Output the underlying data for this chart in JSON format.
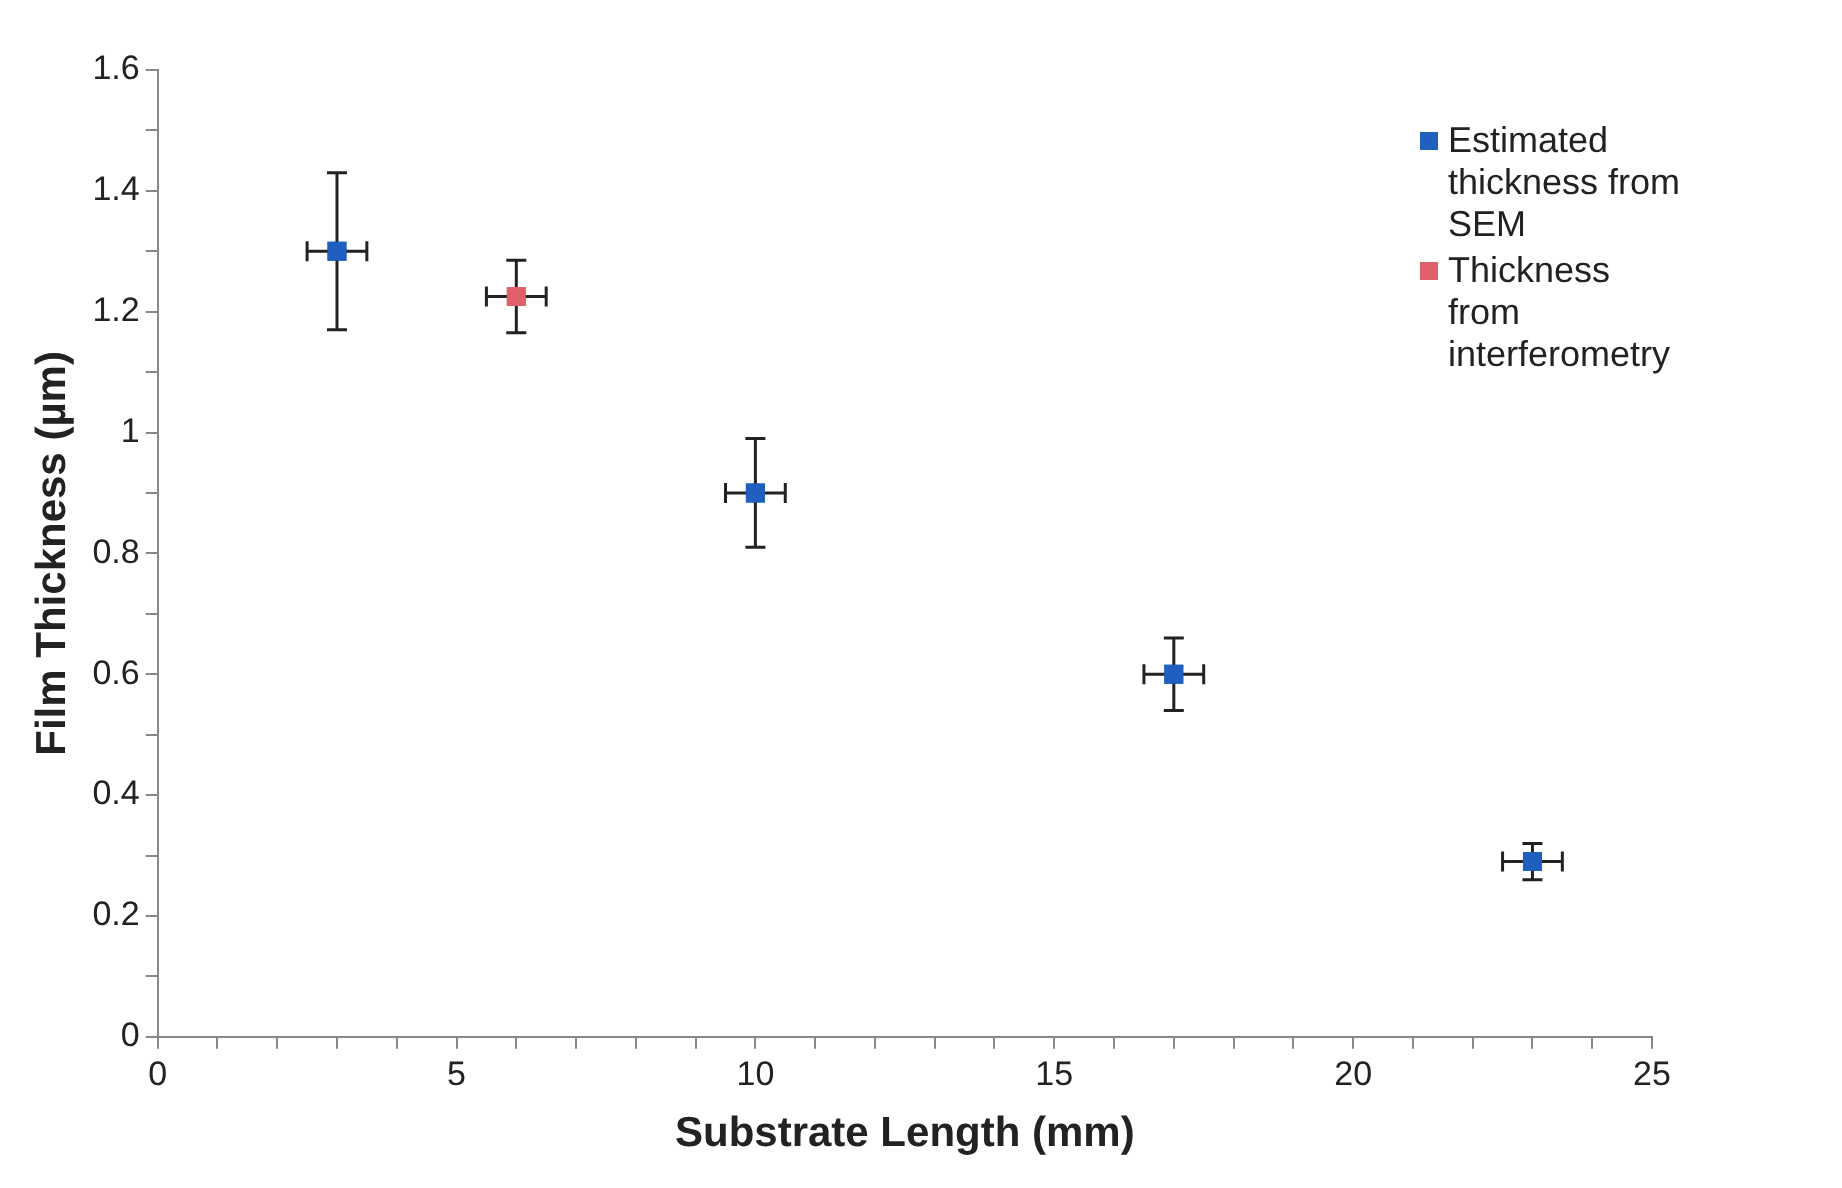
{
  "chart_data": {
    "type": "scatter",
    "xlabel": "Substrate Length (mm)",
    "ylabel": "Film Thickness (µm)",
    "series": [
      {
        "name": "Estimated thickness from SEM",
        "color": "#1f5fbf",
        "x": [
          3,
          10,
          17,
          23
        ],
        "values": [
          1.3,
          0.9,
          0.6,
          0.29
        ],
        "errors": [
          0.13,
          0.09,
          0.06,
          0.03
        ],
        "xerrors": [
          0.5,
          0.5,
          0.5,
          0.5
        ]
      },
      {
        "name": "Thickness from interferometry",
        "color": "#e0606a",
        "x": [
          6
        ],
        "values": [
          1.225
        ],
        "errors": [
          0.06
        ],
        "xerrors": [
          0.5
        ]
      }
    ],
    "xlim": [
      0,
      25
    ],
    "xticks": [
      0,
      {
        "value": 1,
        "label": null
      },
      {
        "value": 2,
        "label": null
      },
      {
        "value": 3,
        "label": null
      },
      {
        "value": 4,
        "label": null
      },
      5,
      {
        "value": 6,
        "label": null
      },
      {
        "value": 7,
        "label": null
      },
      {
        "value": 8,
        "label": null
      },
      {
        "value": 9,
        "label": null
      },
      10,
      {
        "value": 11,
        "label": null
      },
      {
        "value": 12,
        "label": null
      },
      {
        "value": 13,
        "label": null
      },
      {
        "value": 14,
        "label": null
      },
      15,
      {
        "value": 16,
        "label": null
      },
      {
        "value": 17,
        "label": null
      },
      {
        "value": 18,
        "label": null
      },
      {
        "value": 19,
        "label": null
      },
      20,
      {
        "value": 21,
        "label": null
      },
      {
        "value": 22,
        "label": null
      },
      {
        "value": 23,
        "label": null
      },
      {
        "value": 24,
        "label": null
      },
      25
    ],
    "ylim": [
      0,
      1.6
    ],
    "yticks": [
      0,
      {
        "value": 0.1,
        "label": null
      },
      0.2,
      {
        "value": 0.3,
        "label": null
      },
      0.4,
      {
        "value": 0.5,
        "label": null
      },
      0.6,
      {
        "value": 0.7,
        "label": null
      },
      0.8,
      {
        "value": 0.9,
        "label": null
      },
      1,
      {
        "value": 1.1,
        "label": null
      },
      1.2,
      {
        "value": 1.3,
        "label": null
      },
      1.4,
      {
        "value": 1.5,
        "label": null
      },
      1.6
    ],
    "marker": "square",
    "grid": false,
    "legend": "top right"
  }
}
